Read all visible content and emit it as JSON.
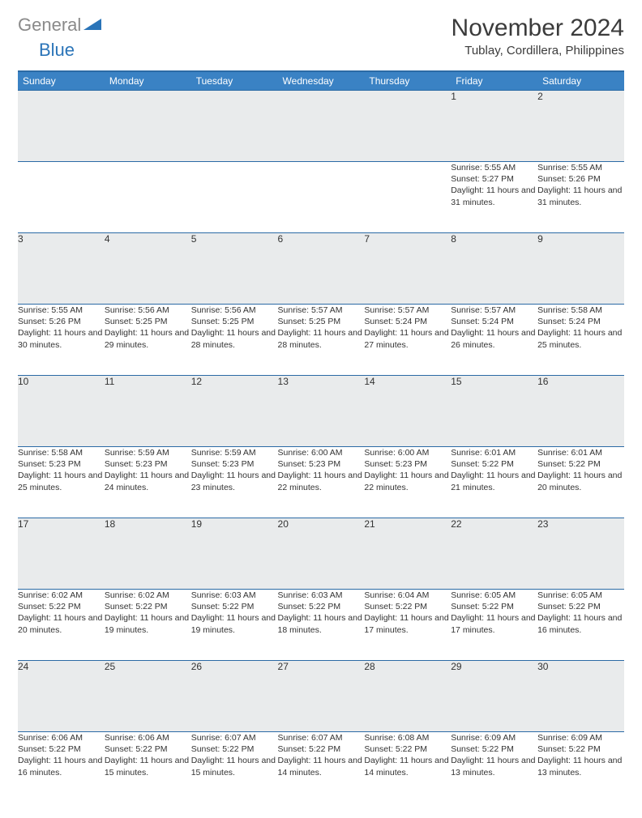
{
  "logo": {
    "word1": "General",
    "word2": "Blue"
  },
  "title": "November 2024",
  "location": "Tublay, Cordillera, Philippines",
  "colors": {
    "header_bg": "#3a82c4",
    "header_border": "#2b6aa5",
    "daynum_bg": "#e9ebec",
    "text": "#333333",
    "logo_gray": "#8a8a8a",
    "logo_blue": "#2a74b8"
  },
  "weekdays": [
    "Sunday",
    "Monday",
    "Tuesday",
    "Wednesday",
    "Thursday",
    "Friday",
    "Saturday"
  ],
  "weeks": [
    [
      null,
      null,
      null,
      null,
      null,
      {
        "n": "1",
        "sr": "5:55 AM",
        "ss": "5:27 PM",
        "dl": "11 hours and 31 minutes."
      },
      {
        "n": "2",
        "sr": "5:55 AM",
        "ss": "5:26 PM",
        "dl": "11 hours and 31 minutes."
      }
    ],
    [
      {
        "n": "3",
        "sr": "5:55 AM",
        "ss": "5:26 PM",
        "dl": "11 hours and 30 minutes."
      },
      {
        "n": "4",
        "sr": "5:56 AM",
        "ss": "5:25 PM",
        "dl": "11 hours and 29 minutes."
      },
      {
        "n": "5",
        "sr": "5:56 AM",
        "ss": "5:25 PM",
        "dl": "11 hours and 28 minutes."
      },
      {
        "n": "6",
        "sr": "5:57 AM",
        "ss": "5:25 PM",
        "dl": "11 hours and 28 minutes."
      },
      {
        "n": "7",
        "sr": "5:57 AM",
        "ss": "5:24 PM",
        "dl": "11 hours and 27 minutes."
      },
      {
        "n": "8",
        "sr": "5:57 AM",
        "ss": "5:24 PM",
        "dl": "11 hours and 26 minutes."
      },
      {
        "n": "9",
        "sr": "5:58 AM",
        "ss": "5:24 PM",
        "dl": "11 hours and 25 minutes."
      }
    ],
    [
      {
        "n": "10",
        "sr": "5:58 AM",
        "ss": "5:23 PM",
        "dl": "11 hours and 25 minutes."
      },
      {
        "n": "11",
        "sr": "5:59 AM",
        "ss": "5:23 PM",
        "dl": "11 hours and 24 minutes."
      },
      {
        "n": "12",
        "sr": "5:59 AM",
        "ss": "5:23 PM",
        "dl": "11 hours and 23 minutes."
      },
      {
        "n": "13",
        "sr": "6:00 AM",
        "ss": "5:23 PM",
        "dl": "11 hours and 22 minutes."
      },
      {
        "n": "14",
        "sr": "6:00 AM",
        "ss": "5:23 PM",
        "dl": "11 hours and 22 minutes."
      },
      {
        "n": "15",
        "sr": "6:01 AM",
        "ss": "5:22 PM",
        "dl": "11 hours and 21 minutes."
      },
      {
        "n": "16",
        "sr": "6:01 AM",
        "ss": "5:22 PM",
        "dl": "11 hours and 20 minutes."
      }
    ],
    [
      {
        "n": "17",
        "sr": "6:02 AM",
        "ss": "5:22 PM",
        "dl": "11 hours and 20 minutes."
      },
      {
        "n": "18",
        "sr": "6:02 AM",
        "ss": "5:22 PM",
        "dl": "11 hours and 19 minutes."
      },
      {
        "n": "19",
        "sr": "6:03 AM",
        "ss": "5:22 PM",
        "dl": "11 hours and 19 minutes."
      },
      {
        "n": "20",
        "sr": "6:03 AM",
        "ss": "5:22 PM",
        "dl": "11 hours and 18 minutes."
      },
      {
        "n": "21",
        "sr": "6:04 AM",
        "ss": "5:22 PM",
        "dl": "11 hours and 17 minutes."
      },
      {
        "n": "22",
        "sr": "6:05 AM",
        "ss": "5:22 PM",
        "dl": "11 hours and 17 minutes."
      },
      {
        "n": "23",
        "sr": "6:05 AM",
        "ss": "5:22 PM",
        "dl": "11 hours and 16 minutes."
      }
    ],
    [
      {
        "n": "24",
        "sr": "6:06 AM",
        "ss": "5:22 PM",
        "dl": "11 hours and 16 minutes."
      },
      {
        "n": "25",
        "sr": "6:06 AM",
        "ss": "5:22 PM",
        "dl": "11 hours and 15 minutes."
      },
      {
        "n": "26",
        "sr": "6:07 AM",
        "ss": "5:22 PM",
        "dl": "11 hours and 15 minutes."
      },
      {
        "n": "27",
        "sr": "6:07 AM",
        "ss": "5:22 PM",
        "dl": "11 hours and 14 minutes."
      },
      {
        "n": "28",
        "sr": "6:08 AM",
        "ss": "5:22 PM",
        "dl": "11 hours and 14 minutes."
      },
      {
        "n": "29",
        "sr": "6:09 AM",
        "ss": "5:22 PM",
        "dl": "11 hours and 13 minutes."
      },
      {
        "n": "30",
        "sr": "6:09 AM",
        "ss": "5:22 PM",
        "dl": "11 hours and 13 minutes."
      }
    ]
  ],
  "labels": {
    "sunrise": "Sunrise:",
    "sunset": "Sunset:",
    "daylight": "Daylight:"
  }
}
